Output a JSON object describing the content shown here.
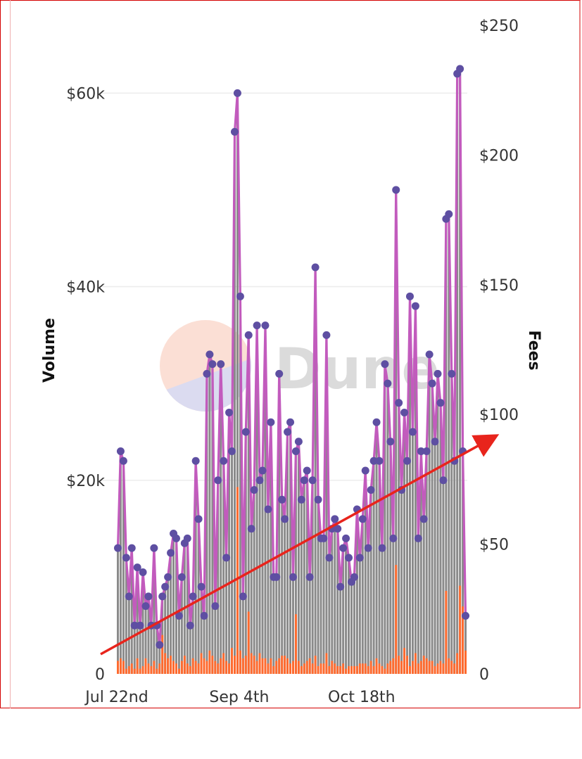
{
  "chart_data": {
    "type": "bar+line",
    "xlabel": "",
    "ylabel_left": "Volume",
    "ylabel_right": "Fees",
    "x_ticks": [
      "Jul 22nd",
      "Sep 4th",
      "Oct 18th"
    ],
    "y_left_ticks": [
      "0",
      "$20k",
      "$40k",
      "$60k"
    ],
    "y_right_ticks": [
      "0",
      "$50",
      "$100",
      "$150",
      "$200",
      "$250"
    ],
    "y_left_lim": [
      0,
      67000
    ],
    "y_right_lim": [
      0,
      250
    ],
    "grid": true,
    "watermark": "Dune",
    "colors": {
      "volume_bars": "#8a8a8a",
      "fees_bars": "#ff6a2e",
      "line": "#c25bbd",
      "markers": "#5e4fa2",
      "trend_arrow": "#e8241c",
      "grid": "#ececec"
    },
    "series": [
      {
        "type": "bar",
        "axis": "left",
        "values": [
          13000,
          23000,
          22000,
          12000,
          8000,
          13000,
          5000,
          11000,
          5000,
          10500,
          7000,
          8000,
          5000,
          13000,
          5000,
          3000,
          8000,
          9000,
          10000,
          12500,
          14500,
          14000,
          6000,
          10000,
          13500,
          14000,
          5000,
          8000,
          22000,
          16000,
          9000,
          6000,
          31000,
          33000,
          32000,
          7000,
          20000,
          32000,
          22000,
          12000,
          27000,
          23000,
          56000,
          60000,
          39000,
          8000,
          25000,
          35000,
          15000,
          19000,
          36000,
          20000,
          21000,
          36000,
          17000,
          26000,
          10000,
          10000,
          31000,
          18000,
          16000,
          25000,
          26000,
          10000,
          23000,
          24000,
          18000,
          20000,
          21000,
          10000,
          20000,
          42000,
          18000,
          14000,
          14000,
          35000,
          12000,
          15000,
          16000,
          15000,
          9000,
          13000,
          14000,
          12000,
          9500,
          10000,
          17000,
          12000,
          16000,
          21000,
          13000,
          19000,
          22000,
          26000,
          22000,
          13000,
          32000,
          30000,
          24000,
          14000,
          50000,
          28000,
          19000,
          27000,
          22000,
          39000,
          25000,
          38000,
          14000,
          23000,
          16000,
          23000,
          33000,
          30000,
          24000,
          31000,
          28000,
          20000,
          47000,
          47500,
          31000,
          22000,
          62000,
          62500,
          23000,
          6000
        ]
      },
      {
        "type": "bar",
        "axis": "right",
        "values": [
          5,
          6,
          5,
          2,
          3,
          4,
          2,
          6,
          2,
          3,
          6,
          4,
          3,
          5,
          2,
          4,
          15,
          8,
          6,
          7,
          5,
          4,
          2,
          5,
          7,
          4,
          3,
          6,
          5,
          4,
          8,
          6,
          5,
          9,
          7,
          5,
          4,
          6,
          8,
          5,
          4,
          10,
          7,
          72,
          9,
          6,
          7,
          24,
          8,
          7,
          5,
          8,
          6,
          6,
          4,
          6,
          3,
          5,
          6,
          7,
          7,
          6,
          4,
          5,
          23,
          5,
          3,
          4,
          5,
          6,
          4,
          7,
          3,
          4,
          4,
          8,
          3,
          5,
          4,
          3,
          3,
          4,
          2,
          3,
          3,
          3,
          3,
          4,
          4,
          4,
          3,
          5,
          3,
          6,
          4,
          3,
          2,
          4,
          5,
          6,
          42,
          7,
          5,
          10,
          7,
          3,
          5,
          8,
          4,
          5,
          7,
          6,
          5,
          5,
          3,
          4,
          5,
          4,
          32,
          6,
          5,
          4,
          8,
          34,
          26,
          9
        ]
      },
      {
        "type": "line",
        "axis": "right",
        "values": [
          13000,
          23000,
          22000,
          12000,
          8000,
          13000,
          5000,
          11000,
          5000,
          10500,
          7000,
          8000,
          5000,
          13000,
          5000,
          3000,
          8000,
          9000,
          10000,
          12500,
          14500,
          14000,
          6000,
          10000,
          13500,
          14000,
          5000,
          8000,
          22000,
          16000,
          9000,
          6000,
          31000,
          33000,
          32000,
          7000,
          20000,
          32000,
          22000,
          12000,
          27000,
          23000,
          56000,
          60000,
          39000,
          8000,
          25000,
          35000,
          15000,
          19000,
          36000,
          20000,
          21000,
          36000,
          17000,
          26000,
          10000,
          10000,
          31000,
          18000,
          16000,
          25000,
          26000,
          10000,
          23000,
          24000,
          18000,
          20000,
          21000,
          10000,
          20000,
          42000,
          18000,
          14000,
          14000,
          35000,
          12000,
          15000,
          16000,
          15000,
          9000,
          13000,
          14000,
          12000,
          9500,
          10000,
          17000,
          12000,
          16000,
          21000,
          13000,
          19000,
          22000,
          26000,
          22000,
          13000,
          32000,
          30000,
          24000,
          14000,
          50000,
          28000,
          19000,
          27000,
          22000,
          39000,
          25000,
          38000,
          14000,
          23000,
          16000,
          23000,
          33000,
          30000,
          24000,
          31000,
          28000,
          20000,
          47000,
          47500,
          31000,
          22000,
          62000,
          62500,
          23000,
          6000
        ]
      }
    ]
  }
}
